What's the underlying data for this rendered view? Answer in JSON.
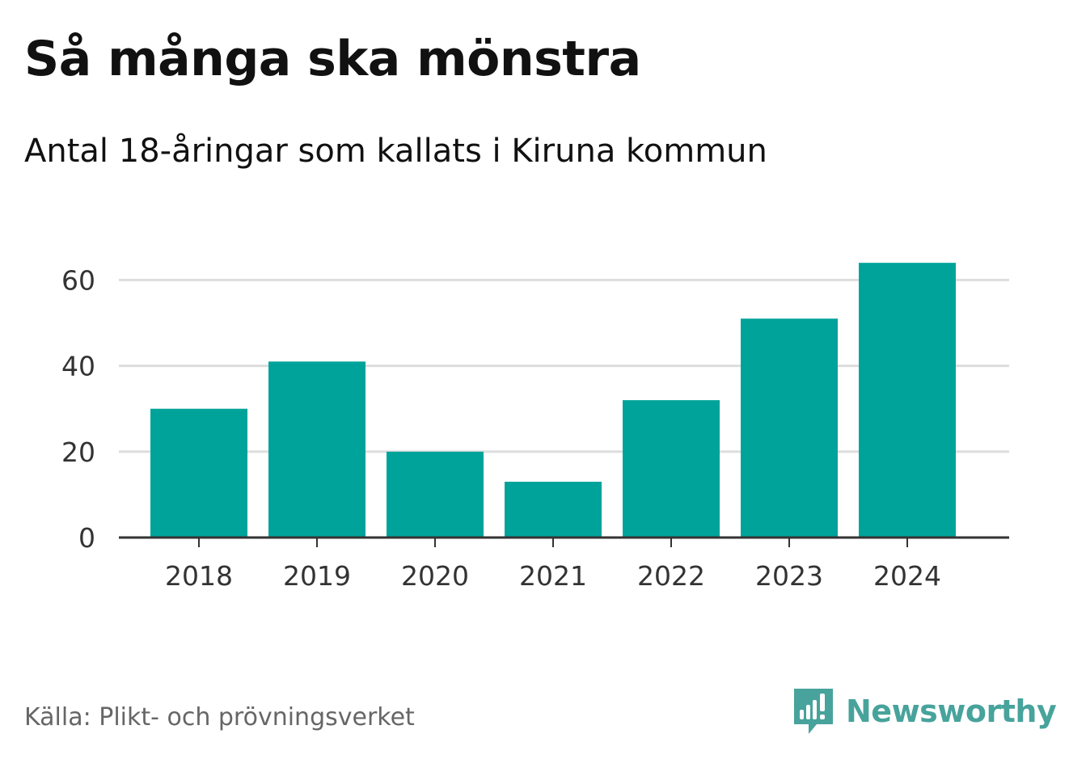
{
  "header": {
    "title": "Så många ska mönstra",
    "subtitle": "Antal 18-åringar som kallats i Kiruna kommun"
  },
  "footer": {
    "source": "Källa: Plikt- och prövningsverket",
    "brand": "Newsworthy"
  },
  "colors": {
    "bar": "#00a39a",
    "grid": "#dddddd",
    "axis": "#333333",
    "tick_label": "#333333",
    "brand": "#47a39b"
  },
  "chart_data": {
    "type": "bar",
    "title": "Så många ska mönstra",
    "subtitle": "Antal 18-åringar som kallats i Kiruna kommun",
    "categories": [
      "2018",
      "2019",
      "2020",
      "2021",
      "2022",
      "2023",
      "2024"
    ],
    "values": [
      30,
      41,
      20,
      13,
      32,
      51,
      64
    ],
    "xlabel": "",
    "ylabel": "",
    "ylim": [
      0,
      64
    ],
    "yticks": [
      0,
      20,
      40,
      60
    ],
    "grid": true,
    "legend": "none"
  }
}
